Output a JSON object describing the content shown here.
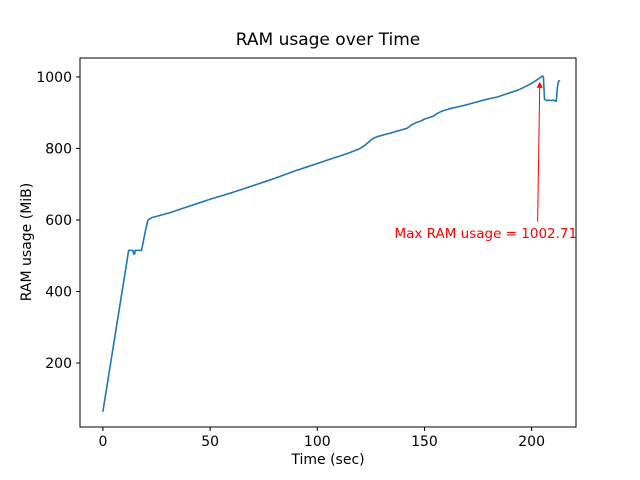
{
  "page": {
    "background": "#ffffff"
  },
  "chart_data": {
    "type": "line",
    "title": "RAM usage over Time",
    "xlabel": "Time (sec)",
    "ylabel": "RAM usage (MiB)",
    "xlim": [
      -10.7,
      220.7
    ],
    "ylim": [
      21,
      1053
    ],
    "xticks": [
      0,
      50,
      100,
      150,
      200
    ],
    "yticks": [
      200,
      400,
      600,
      800,
      1000
    ],
    "grid": false,
    "legend": "none",
    "line_color": "#1f77b4",
    "spine_color": "#000000",
    "max_value": 1002.71,
    "series": [
      {
        "name": "RAM usage",
        "points": [
          [
            0,
            65
          ],
          [
            12,
            515
          ],
          [
            14,
            515
          ],
          [
            14.3,
            505
          ],
          [
            14.8,
            505
          ],
          [
            15,
            515
          ],
          [
            18,
            515
          ],
          [
            19,
            545
          ],
          [
            20,
            575
          ],
          [
            21,
            600
          ],
          [
            23,
            607
          ],
          [
            25,
            610
          ],
          [
            28,
            615
          ],
          [
            32,
            622
          ],
          [
            36,
            630
          ],
          [
            40,
            638
          ],
          [
            45,
            648
          ],
          [
            50,
            658
          ],
          [
            55,
            667
          ],
          [
            60,
            676
          ],
          [
            65,
            686
          ],
          [
            70,
            696
          ],
          [
            75,
            706
          ],
          [
            80,
            716
          ],
          [
            85,
            727
          ],
          [
            90,
            738
          ],
          [
            95,
            748
          ],
          [
            100,
            758
          ],
          [
            105,
            768
          ],
          [
            110,
            778
          ],
          [
            115,
            788
          ],
          [
            120,
            800
          ],
          [
            122,
            808
          ],
          [
            124,
            818
          ],
          [
            126,
            828
          ],
          [
            128,
            833
          ],
          [
            131,
            838
          ],
          [
            134,
            843
          ],
          [
            137,
            848
          ],
          [
            140,
            853
          ],
          [
            142,
            857
          ],
          [
            144,
            866
          ],
          [
            146,
            872
          ],
          [
            148,
            876
          ],
          [
            150,
            882
          ],
          [
            152,
            886
          ],
          [
            154,
            890
          ],
          [
            156,
            898
          ],
          [
            158,
            904
          ],
          [
            160,
            908
          ],
          [
            163,
            913
          ],
          [
            166,
            917
          ],
          [
            169,
            921
          ],
          [
            172,
            926
          ],
          [
            175,
            931
          ],
          [
            178,
            936
          ],
          [
            181,
            940
          ],
          [
            184,
            944
          ],
          [
            186,
            948
          ],
          [
            188,
            952
          ],
          [
            190,
            956
          ],
          [
            192,
            960
          ],
          [
            194,
            964
          ],
          [
            196,
            970
          ],
          [
            198,
            976
          ],
          [
            200,
            982
          ],
          [
            202,
            990
          ],
          [
            204,
            998
          ],
          [
            205,
            1002.71
          ],
          [
            205.5,
            1000
          ],
          [
            206,
            938
          ],
          [
            207,
            934
          ],
          [
            208,
            935
          ],
          [
            209,
            934
          ],
          [
            210,
            935
          ],
          [
            211,
            933
          ],
          [
            211.5,
            932
          ],
          [
            212,
            970
          ],
          [
            212.5,
            988
          ],
          [
            213,
            989
          ]
        ]
      }
    ],
    "annotation": {
      "text": "Max RAM usage = 1002.71",
      "color": "#ff0000",
      "point": [
        203.8,
        985
      ],
      "arrow_tail": [
        202.8,
        595
      ],
      "text_pos": [
        136,
        560
      ]
    }
  }
}
